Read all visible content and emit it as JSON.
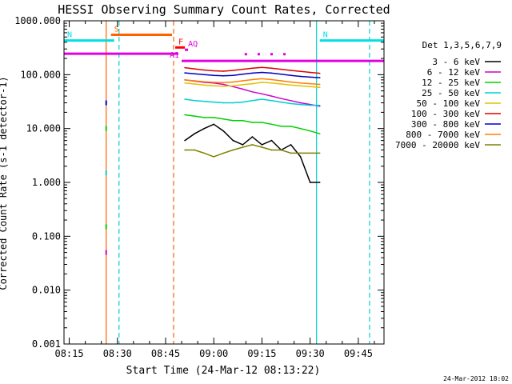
{
  "chart_data": {
    "type": "line",
    "title": "HESSI Observing Summary Count Rates, Corrected",
    "xlabel": "Start Time (24-Mar-12 08:13:22)",
    "ylabel": "Corrected Count Rate (s-1 detector-1)",
    "y_scale": "log",
    "ylim": [
      0.001,
      1000
    ],
    "xlim": [
      "08:13:22",
      "09:53:00"
    ],
    "x_ticks": [
      "08:15",
      "08:30",
      "08:45",
      "09:00",
      "09:15",
      "09:30",
      "09:45"
    ],
    "y_ticks": [
      "1000.000",
      "100.000",
      "10.000",
      "1.000",
      "0.100",
      "0.010",
      "0.001"
    ],
    "timestamp": "24-Mar-2012 18:02",
    "legend_title": "Det 1,3,5,6,7,9",
    "legend_position": "right",
    "series": [
      {
        "name": "3 - 6 keV",
        "color": "#000000",
        "x": [
          "08:51",
          "08:54",
          "08:57",
          "09:00",
          "09:03",
          "09:06",
          "09:09",
          "09:12",
          "09:15",
          "09:18",
          "09:21",
          "09:24",
          "09:27",
          "09:30",
          "09:33"
        ],
        "values": [
          6,
          8,
          10,
          12,
          9,
          6,
          5,
          7,
          5,
          6,
          4,
          5,
          3,
          1,
          1
        ]
      },
      {
        "name": "6 - 12 keV",
        "color": "#d000d0",
        "x": [
          "08:51",
          "08:54",
          "08:57",
          "09:00",
          "09:03",
          "09:06",
          "09:09",
          "09:12",
          "09:15",
          "09:18",
          "09:21",
          "09:24",
          "09:27",
          "09:30",
          "09:33"
        ],
        "values": [
          80,
          76,
          72,
          70,
          66,
          60,
          54,
          48,
          44,
          40,
          36,
          33,
          30,
          28,
          26
        ]
      },
      {
        "name": "12 - 25 keV",
        "color": "#00d000",
        "x": [
          "08:51",
          "08:54",
          "08:57",
          "09:00",
          "09:03",
          "09:06",
          "09:09",
          "09:12",
          "09:15",
          "09:18",
          "09:21",
          "09:24",
          "09:27",
          "09:30",
          "09:33"
        ],
        "values": [
          18,
          17,
          16,
          16,
          15,
          14,
          14,
          13,
          13,
          12,
          11,
          11,
          10,
          9,
          8
        ]
      },
      {
        "name": "25 - 50 keV",
        "color": "#00d0d0",
        "x": [
          "08:51",
          "08:54",
          "08:57",
          "09:00",
          "09:03",
          "09:06",
          "09:09",
          "09:12",
          "09:15",
          "09:18",
          "09:21",
          "09:24",
          "09:27",
          "09:30",
          "09:33"
        ],
        "values": [
          35,
          33,
          32,
          31,
          30,
          30,
          31,
          33,
          35,
          33,
          31,
          29,
          28,
          27,
          27
        ]
      },
      {
        "name": "50 - 100 keV",
        "color": "#e0c000",
        "x": [
          "08:51",
          "08:54",
          "08:57",
          "09:00",
          "09:03",
          "09:06",
          "09:09",
          "09:12",
          "09:15",
          "09:18",
          "09:21",
          "09:24",
          "09:27",
          "09:30",
          "09:33"
        ],
        "values": [
          70,
          67,
          64,
          62,
          61,
          62,
          65,
          68,
          72,
          70,
          67,
          64,
          62,
          60,
          58
        ]
      },
      {
        "name": "100 - 300 keV",
        "color": "#e00000",
        "x": [
          "08:51",
          "08:54",
          "08:57",
          "09:00",
          "09:03",
          "09:06",
          "09:09",
          "09:12",
          "09:15",
          "09:18",
          "09:21",
          "09:24",
          "09:27",
          "09:30",
          "09:33"
        ],
        "values": [
          135,
          128,
          122,
          118,
          116,
          120,
          126,
          132,
          136,
          132,
          126,
          120,
          115,
          110,
          106
        ]
      },
      {
        "name": "300 - 800 keV",
        "color": "#0000c0",
        "x": [
          "08:51",
          "08:54",
          "08:57",
          "09:00",
          "09:03",
          "09:06",
          "09:09",
          "09:12",
          "09:15",
          "09:18",
          "09:21",
          "09:24",
          "09:27",
          "09:30",
          "09:33"
        ],
        "values": [
          108,
          104,
          100,
          97,
          95,
          97,
          102,
          107,
          110,
          107,
          102,
          97,
          93,
          90,
          88
        ]
      },
      {
        "name": "800 - 7000 keV",
        "color": "#ff8000",
        "x": [
          "08:51",
          "08:54",
          "08:57",
          "09:00",
          "09:03",
          "09:06",
          "09:09",
          "09:12",
          "09:15",
          "09:18",
          "09:21",
          "09:24",
          "09:27",
          "09:30",
          "09:33"
        ],
        "values": [
          80,
          77,
          74,
          72,
          71,
          73,
          77,
          81,
          84,
          81,
          77,
          73,
          70,
          68,
          66
        ]
      },
      {
        "name": "7000 - 20000 keV",
        "color": "#808000",
        "x": [
          "08:51",
          "08:54",
          "08:57",
          "09:00",
          "09:03",
          "09:06",
          "09:09",
          "09:12",
          "09:15",
          "09:18",
          "09:21",
          "09:24",
          "09:27",
          "09:30",
          "09:33"
        ],
        "values": [
          4,
          4,
          3.5,
          3,
          3.5,
          4,
          4.5,
          5,
          4.5,
          4,
          4,
          3.5,
          3.5,
          3.5,
          3.5
        ]
      }
    ],
    "flag_bars": [
      {
        "label": "S",
        "color": "#ff6000",
        "start": "08:28",
        "end": "08:47",
        "level": 550
      },
      {
        "label": "N",
        "color": "#00e0e0",
        "start": "08:13:22",
        "end": "08:29",
        "level": 430
      },
      {
        "label": "N",
        "color": "#00e0e0",
        "start": "09:33",
        "end": "09:53",
        "level": 430
      },
      {
        "label": "F",
        "color": "#ff0000",
        "start": "08:48",
        "end": "08:51",
        "level": 320
      },
      {
        "label": "AQ",
        "color": "#e000e0",
        "start": "08:51",
        "end": "08:52",
        "level": 290
      },
      {
        "label": "A1",
        "color": "#e000e0",
        "start": "08:13:22",
        "end": "08:49",
        "level": 245
      },
      {
        "label": "A1",
        "color": "#e000e0",
        "start": "08:50",
        "end": "09:53",
        "level": 180
      }
    ],
    "markers": [
      {
        "color": "#e000e0",
        "times": [
          "09:10",
          "09:14",
          "09:18",
          "09:22"
        ],
        "level": 240
      }
    ],
    "vertical_lines": [
      {
        "time": "08:26:30",
        "color": "#ff6000",
        "style": "solid"
      },
      {
        "time": "08:30:30",
        "color": "#00d0d0",
        "style": "dashed"
      },
      {
        "time": "08:47:30",
        "color": "#ff6000",
        "style": "dashed"
      },
      {
        "time": "09:32",
        "color": "#00d0d0",
        "style": "solid"
      },
      {
        "time": "09:48:30",
        "color": "#00d0d0",
        "style": "dashed"
      }
    ],
    "spikes": [
      {
        "time": "08:26:30",
        "color": "#d000d0",
        "value": 0.05
      },
      {
        "time": "08:26:30",
        "color": "#00d000",
        "value": 0.15
      },
      {
        "time": "08:26:30",
        "color": "#00d0d0",
        "value": 1.5
      },
      {
        "time": "08:26:30",
        "color": "#0000c0",
        "value": 30
      },
      {
        "time": "08:26:30",
        "color": "#00d000",
        "value": 10
      }
    ]
  }
}
